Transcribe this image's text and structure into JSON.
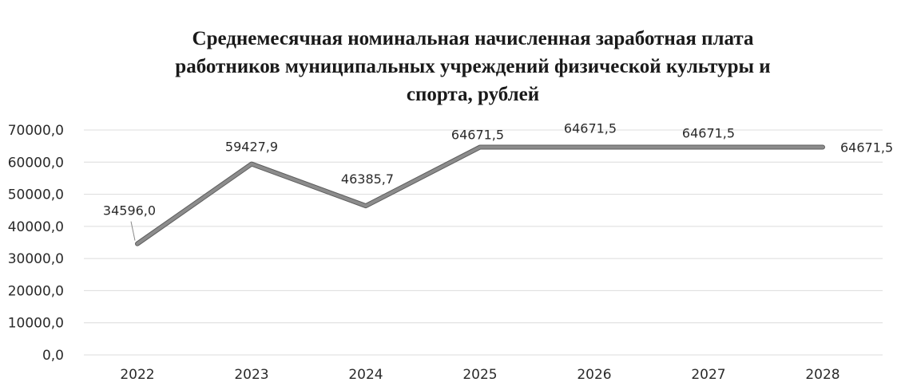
{
  "chart_data": {
    "type": "line",
    "title_lines": [
      "Среднемесячная номинальная начисленная заработная плата",
      "работников муниципальных учреждений физической культуры и",
      "спорта, рублей"
    ],
    "categories": [
      "2022",
      "2023",
      "2024",
      "2025",
      "2026",
      "2027",
      "2028"
    ],
    "series": [
      {
        "values": [
          34596.0,
          59427.9,
          46385.7,
          64671.5,
          64671.5,
          64671.5,
          64671.5
        ],
        "data_labels": [
          "34596,0",
          "59427,9",
          "46385,7",
          "64671,5",
          "64671,5",
          "64671,5",
          "64671,5"
        ],
        "color": "#8c8c8c"
      }
    ],
    "y_ticks": [
      "0,0",
      "10000,0",
      "20000,0",
      "30000,0",
      "40000,0",
      "50000,0",
      "60000,0",
      "70000,0"
    ],
    "ylim": [
      0,
      70000
    ],
    "grid": true,
    "legend": "none"
  }
}
